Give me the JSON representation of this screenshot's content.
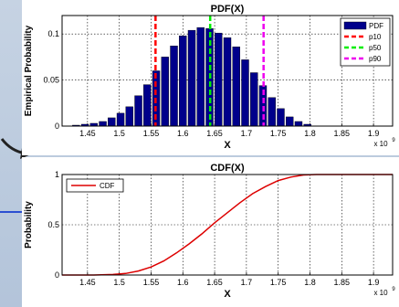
{
  "chart_data": [
    {
      "type": "bar",
      "title": "PDF(X)",
      "xlabel": "X",
      "ylabel": "Empirical Probability",
      "x_exponent": "x 10",
      "x_exponent_power": "9",
      "xlim": [
        1.41,
        1.93
      ],
      "ylim": [
        0,
        0.12
      ],
      "xticks": [
        "1.45",
        "1.5",
        "1.55",
        "1.6",
        "1.65",
        "1.7",
        "1.75",
        "1.8",
        "1.85",
        "1.9"
      ],
      "yticks": [
        "0",
        "0.05",
        "0.1"
      ],
      "grid": true,
      "legend_position": "top-right",
      "bar_color": "#00008b",
      "bars": {
        "x": [
          1.432,
          1.446,
          1.46,
          1.474,
          1.488,
          1.502,
          1.516,
          1.53,
          1.544,
          1.558,
          1.572,
          1.586,
          1.6,
          1.614,
          1.628,
          1.642,
          1.656,
          1.67,
          1.684,
          1.698,
          1.712,
          1.726,
          1.74,
          1.754,
          1.768,
          1.782,
          1.796
        ],
        "values": [
          0.001,
          0.002,
          0.003,
          0.005,
          0.009,
          0.014,
          0.021,
          0.033,
          0.045,
          0.06,
          0.075,
          0.087,
          0.098,
          0.104,
          0.107,
          0.106,
          0.101,
          0.096,
          0.086,
          0.072,
          0.058,
          0.044,
          0.031,
          0.019,
          0.01,
          0.005,
          0.002
        ]
      },
      "lines": [
        {
          "name": "p10",
          "x": 1.557,
          "color": "#ff0000"
        },
        {
          "name": "p50",
          "x": 1.643,
          "color": "#00ee00"
        },
        {
          "name": "p90",
          "x": 1.727,
          "color": "#ee00ee"
        }
      ],
      "legend": [
        "PDF",
        "p10",
        "p50",
        "p90"
      ]
    },
    {
      "type": "line",
      "title": "CDF(X)",
      "xlabel": "X",
      "ylabel": "Probability",
      "x_exponent": "x 10",
      "x_exponent_power": "9",
      "xlim": [
        1.41,
        1.93
      ],
      "ylim": [
        0,
        1
      ],
      "xticks": [
        "1.45",
        "1.5",
        "1.55",
        "1.6",
        "1.65",
        "1.7",
        "1.75",
        "1.8",
        "1.85",
        "1.9"
      ],
      "yticks": [
        "0",
        "0.5",
        "1"
      ],
      "grid": true,
      "legend_position": "top-left",
      "series": [
        {
          "name": "CDF",
          "color": "#dd0000",
          "x": [
            1.41,
            1.46,
            1.49,
            1.51,
            1.53,
            1.55,
            1.57,
            1.59,
            1.61,
            1.63,
            1.65,
            1.67,
            1.69,
            1.71,
            1.73,
            1.75,
            1.77,
            1.79,
            1.81,
            1.93
          ],
          "y": [
            0.0,
            0.0,
            0.005,
            0.015,
            0.04,
            0.08,
            0.14,
            0.22,
            0.31,
            0.41,
            0.52,
            0.62,
            0.72,
            0.81,
            0.88,
            0.94,
            0.975,
            0.995,
            1.0,
            1.0
          ]
        }
      ],
      "legend": [
        "CDF"
      ]
    }
  ]
}
